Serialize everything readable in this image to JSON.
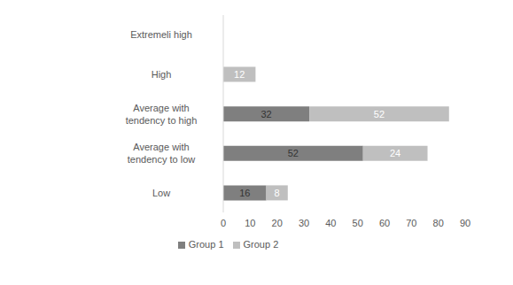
{
  "chart_data": {
    "type": "bar",
    "orientation": "horizontal",
    "stacked": true,
    "data_labels": true,
    "grid": false,
    "legend": "bottom",
    "categories": [
      "Extremeli high",
      "High",
      "Average with tendency to high",
      "Average with tendency to low",
      "Low"
    ],
    "series": [
      {
        "name": "Group 1",
        "color": "#7f7f7f",
        "values": [
          0,
          0,
          32,
          52,
          16
        ]
      },
      {
        "name": "Group 2",
        "color": "#bfbfbf",
        "values": [
          0,
          12,
          52,
          24,
          8
        ]
      }
    ],
    "xlim": [
      0,
      90
    ],
    "xticks": [
      0,
      10,
      20,
      30,
      40,
      50,
      60,
      70,
      80,
      90
    ]
  }
}
